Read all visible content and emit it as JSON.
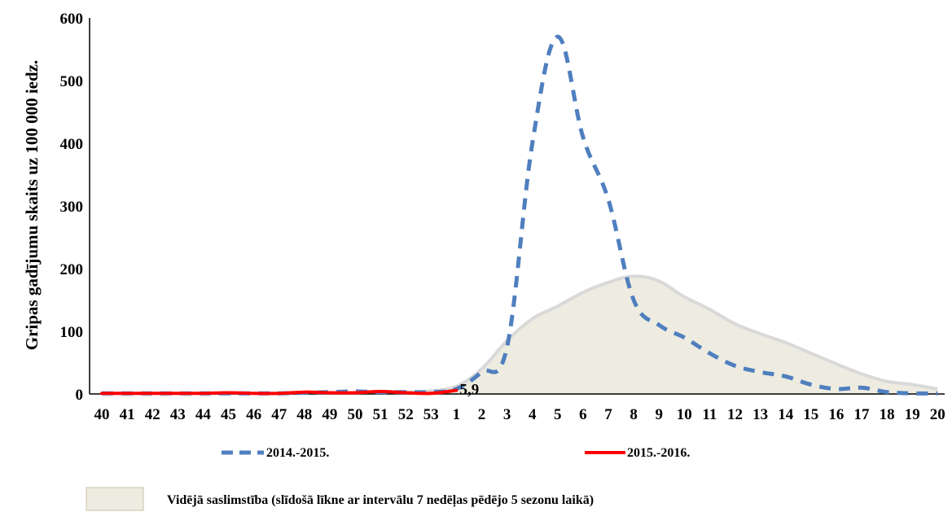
{
  "chart_data": {
    "type": "line",
    "x_categories": [
      "40",
      "41",
      "42",
      "43",
      "44",
      "45",
      "46",
      "47",
      "48",
      "49",
      "50",
      "51",
      "52",
      "53",
      "1",
      "2",
      "3",
      "4",
      "5",
      "6",
      "7",
      "8",
      "9",
      "10",
      "11",
      "12",
      "13",
      "14",
      "15",
      "16",
      "17",
      "18",
      "19",
      "20"
    ],
    "ylabel": "Gripas gadījumu skaits uz 100 000 iedz.",
    "ylim": [
      0,
      600
    ],
    "yticks": [
      0,
      100,
      200,
      300,
      400,
      500,
      600
    ],
    "grid": false,
    "legend_position": "bottom",
    "series": [
      {
        "name": "2014.-2015.",
        "style": "dashed-line",
        "color": "#4f7fbf",
        "values": [
          1,
          1,
          1,
          1,
          1,
          1,
          1,
          1,
          2,
          3,
          4,
          3,
          3,
          3,
          8,
          35,
          75,
          400,
          570,
          410,
          310,
          150,
          110,
          90,
          65,
          45,
          35,
          28,
          15,
          8,
          10,
          3,
          1,
          1
        ]
      },
      {
        "name": "2015.-2016.",
        "style": "solid-line",
        "color": "#ff0000",
        "values": [
          1,
          1,
          1,
          1,
          1,
          2,
          1,
          1,
          3,
          2,
          2,
          4,
          2,
          1,
          5.9
        ]
      },
      {
        "name": "Vidējā saslimstība (slīdošā līkne ar intervālu 7 nedēļas pēdējo 5 sezonu laikā)",
        "style": "area",
        "color": "#eeece1",
        "edge_color": "#d9d9d9",
        "values": [
          1,
          1,
          1,
          1,
          1,
          1,
          1,
          1,
          1,
          2,
          2,
          3,
          3,
          5,
          12,
          40,
          85,
          120,
          140,
          162,
          178,
          188,
          180,
          155,
          135,
          112,
          96,
          82,
          65,
          48,
          32,
          20,
          15,
          8
        ]
      }
    ],
    "annotations": [
      {
        "text": "5,9",
        "x": "1",
        "y": 5.9
      }
    ]
  }
}
